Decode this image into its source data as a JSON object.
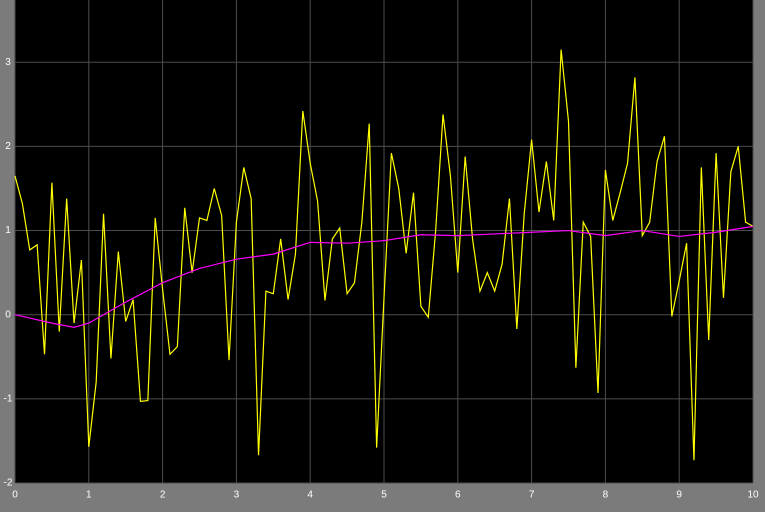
{
  "chart_data": {
    "type": "line",
    "xlim": [
      0,
      10
    ],
    "ylim": [
      -2,
      3.74
    ],
    "xticks": [
      0,
      1,
      2,
      3,
      4,
      5,
      6,
      7,
      8,
      9,
      10
    ],
    "yticks": [
      -2,
      -1,
      0,
      1,
      2,
      3
    ],
    "grid": true,
    "series": [
      {
        "color": "#ffff00",
        "x": [
          0,
          0.1,
          0.2,
          0.3,
          0.4,
          0.5,
          0.6,
          0.7,
          0.8,
          0.9,
          1,
          1.1,
          1.2,
          1.3,
          1.4,
          1.5,
          1.6,
          1.7,
          1.8,
          1.9,
          2,
          2.1,
          2.2,
          2.3,
          2.4,
          2.5,
          2.6,
          2.7,
          2.8,
          2.9,
          3,
          3.1,
          3.2,
          3.3,
          3.4,
          3.5,
          3.6,
          3.7,
          3.8,
          3.9,
          4,
          4.1,
          4.2,
          4.3,
          4.4,
          4.5,
          4.6,
          4.7,
          4.8,
          4.9,
          5,
          5.1,
          5.2,
          5.3,
          5.4,
          5.5,
          5.6,
          5.7,
          5.8,
          5.9,
          6,
          6.1,
          6.2,
          6.3,
          6.4,
          6.5,
          6.6,
          6.7,
          6.8,
          6.9,
          7,
          7.1,
          7.2,
          7.3,
          7.4,
          7.5,
          7.6,
          7.7,
          7.8,
          7.9,
          8,
          8.1,
          8.2,
          8.3,
          8.4,
          8.5,
          8.6,
          8.7,
          8.8,
          8.9,
          9,
          9.1,
          9.2,
          9.3,
          9.4,
          9.5,
          9.6,
          9.7,
          9.8,
          9.9,
          10
        ],
        "values": [
          1.65,
          1.32,
          0.77,
          0.83,
          -0.47,
          1.57,
          -0.2,
          1.38,
          -0.1,
          0.65,
          -1.57,
          -0.8,
          1.2,
          -0.52,
          0.75,
          -0.08,
          0.18,
          -1.03,
          -1.02,
          1.15,
          0.3,
          -0.47,
          -0.38,
          1.27,
          0.5,
          1.15,
          1.12,
          1.5,
          1.18,
          -0.54,
          1.1,
          1.75,
          1.38,
          -1.67,
          0.28,
          0.25,
          0.9,
          0.18,
          0.72,
          2.42,
          1.8,
          1.35,
          0.17,
          0.9,
          1.03,
          0.25,
          0.38,
          1.1,
          2.27,
          -1.58,
          0.2,
          1.92,
          1.5,
          0.73,
          1.45,
          0.1,
          -0.03,
          1.0,
          2.38,
          1.65,
          0.5,
          1.88,
          0.9,
          0.28,
          0.5,
          0.28,
          0.6,
          1.38,
          -0.17,
          1.2,
          2.08,
          1.22,
          1.82,
          1.12,
          3.15,
          2.3,
          -0.63,
          1.1,
          0.93,
          -0.93,
          1.72,
          1.12,
          1.45,
          1.8,
          2.82,
          0.94,
          1.1,
          1.82,
          2.12,
          -0.02,
          0.4,
          0.85,
          -1.73,
          1.75,
          -0.3,
          1.92,
          0.2,
          1.7,
          2.0,
          1.1,
          1.05
        ]
      },
      {
        "color": "#ff00ff",
        "x": [
          0,
          0.5,
          0.8,
          1,
          1.5,
          2,
          2.5,
          3,
          3.5,
          4,
          4.5,
          5,
          5.5,
          6,
          6.5,
          7,
          7.5,
          8,
          8.5,
          9,
          9.5,
          10
        ],
        "values": [
          0,
          -0.1,
          -0.15,
          -0.1,
          0.15,
          0.38,
          0.55,
          0.66,
          0.72,
          0.86,
          0.85,
          0.88,
          0.95,
          0.94,
          0.96,
          0.98,
          1.0,
          0.94,
          1.0,
          0.93,
          0.98,
          1.05
        ]
      }
    ]
  }
}
